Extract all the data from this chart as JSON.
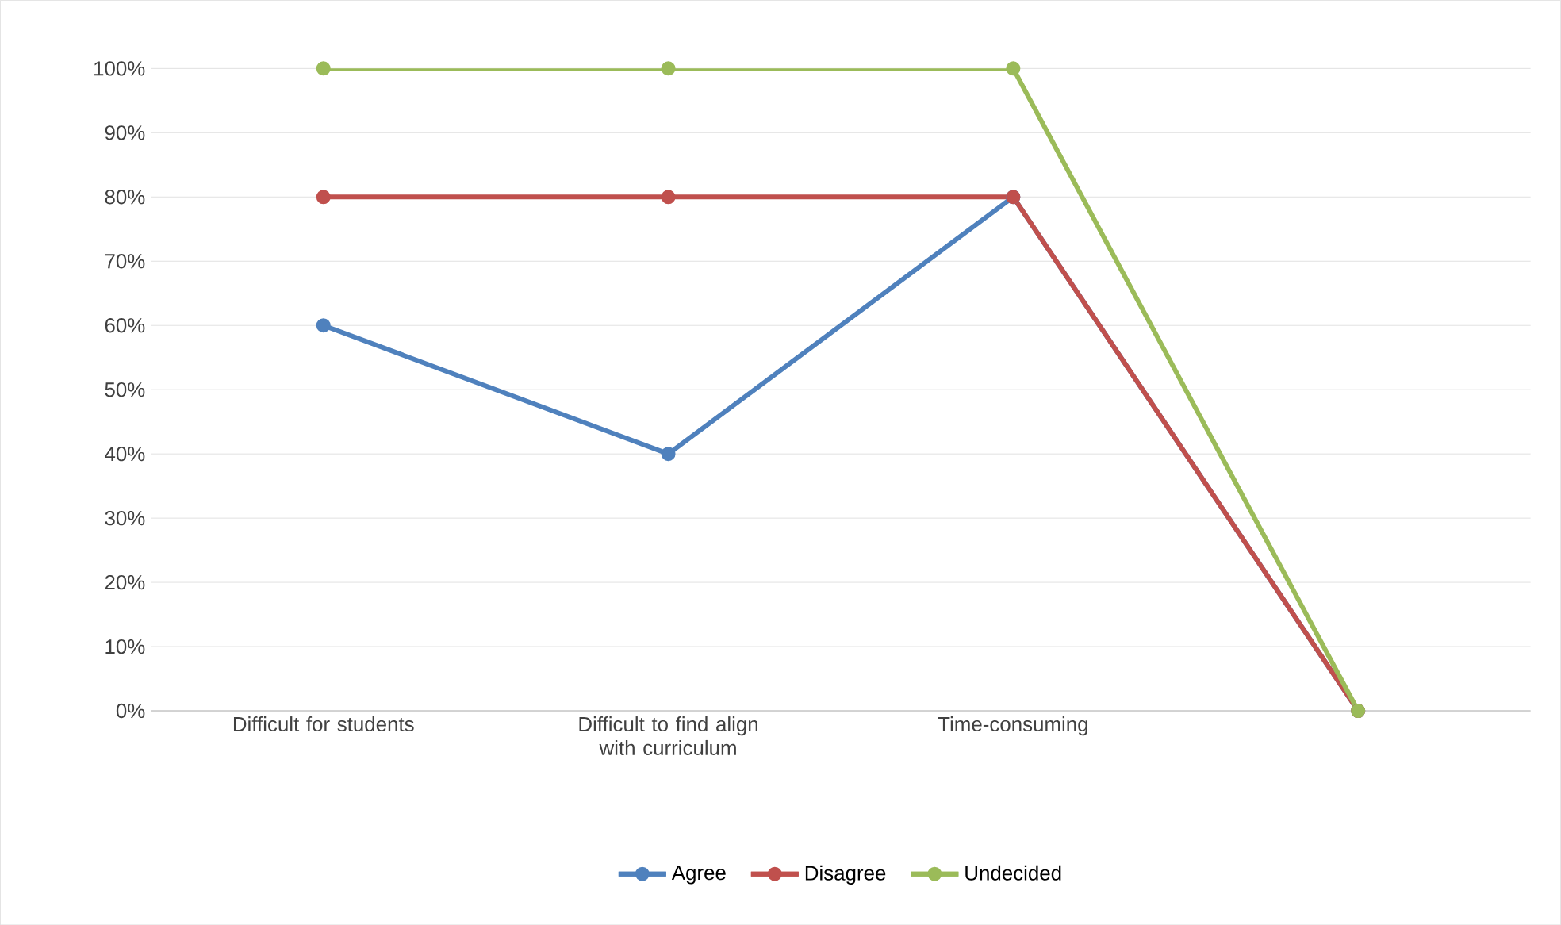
{
  "chart_data": {
    "type": "line",
    "categories": [
      "Difficult for students",
      "Difficult to find align with curriculum",
      "Time-consuming",
      null
    ],
    "series": [
      {
        "name": "Agree",
        "color": "#4f81bd",
        "values": [
          60,
          40,
          80,
          0
        ]
      },
      {
        "name": "Disagree",
        "color": "#c0504d",
        "values": [
          80,
          80,
          80,
          0
        ]
      },
      {
        "name": "Undecided",
        "color": "#9bbb59",
        "values": [
          100,
          100,
          100,
          0
        ]
      }
    ],
    "ylim": [
      0,
      100
    ],
    "yticks": [
      {
        "value": 0,
        "label": "0%"
      },
      {
        "value": 10,
        "label": "10%"
      },
      {
        "value": 20,
        "label": "20%"
      },
      {
        "value": 30,
        "label": "30%"
      },
      {
        "value": 40,
        "label": "40%"
      },
      {
        "value": 50,
        "label": "50%"
      },
      {
        "value": 60,
        "label": "60%"
      },
      {
        "value": 70,
        "label": "70%"
      },
      {
        "value": 80,
        "label": "80%"
      },
      {
        "value": 90,
        "label": "90%"
      },
      {
        "value": 100,
        "label": "100%"
      }
    ],
    "grid": "y",
    "legend": "bottom",
    "marker": "circle",
    "line_style": "solid"
  }
}
